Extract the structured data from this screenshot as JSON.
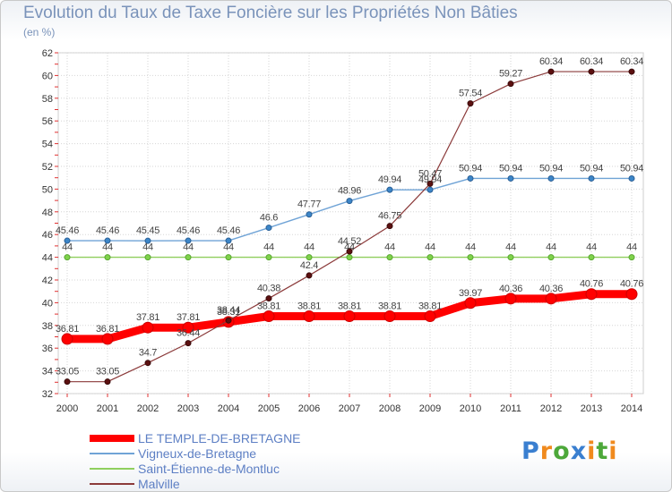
{
  "title": "Evolution du Taux de Taxe Foncière sur les Propriétés Non Bâties",
  "unit_label": "(en %)",
  "logo": {
    "text": "Proxiti",
    "letters": [
      "P",
      "r",
      "o",
      "x",
      "i",
      "t",
      "i"
    ],
    "colors": [
      "#3a7fd0",
      "#f08a1e",
      "#4da83a",
      "#3a7fd0",
      "#f08a1e",
      "#4da83a",
      "#f08a1e"
    ]
  },
  "chart_data": {
    "type": "line",
    "x": [
      "2000",
      "2001",
      "2002",
      "2003",
      "2004",
      "2005",
      "2006",
      "2007",
      "2008",
      "2009",
      "2010",
      "2011",
      "2012",
      "2013",
      "2014"
    ],
    "ylim": [
      32,
      62
    ],
    "yticks": [
      32,
      34,
      36,
      38,
      40,
      42,
      44,
      46,
      48,
      50,
      52,
      54,
      56,
      58,
      60,
      62
    ],
    "grid": true,
    "legend_position": "bottom-left",
    "series": [
      {
        "name": "LE TEMPLE-DE-BRETAGNE",
        "color": "#ff0000",
        "values": [
          36.81,
          36.81,
          37.81,
          37.81,
          38.31,
          38.81,
          38.81,
          38.81,
          38.81,
          38.81,
          39.97,
          40.36,
          40.36,
          40.76,
          40.76
        ],
        "labels": [
          "36.81",
          "36.81",
          "37.81",
          "37.81",
          "38.31",
          "38.81",
          "38.81",
          "38.81",
          "38.81",
          "38.81",
          "39.97",
          "40.36",
          "40.36",
          "40.76",
          "40.76"
        ]
      },
      {
        "name": "Vigneux-de-Bretagne",
        "color": "#6fa3d6",
        "values": [
          45.46,
          45.46,
          45.45,
          45.46,
          45.46,
          46.6,
          47.77,
          48.96,
          49.94,
          49.94,
          50.94,
          50.94,
          50.94,
          50.94,
          50.94
        ],
        "labels": [
          "45.46",
          "45.46",
          "45.45",
          "45.46",
          "45.46",
          "46.6",
          "47.77",
          "48.96",
          "49.94",
          "49.94",
          "50.94",
          "50.94",
          "50.94",
          "50.94",
          "50.94"
        ]
      },
      {
        "name": "Saint-Étienne-de-Montluc",
        "color": "#8fcf5e",
        "values": [
          44,
          44,
          44,
          44,
          44,
          44,
          44,
          44,
          44,
          44,
          44,
          44,
          44,
          44,
          44
        ],
        "labels": [
          "44",
          "44",
          "44",
          "44",
          "44",
          "44",
          "44",
          "44",
          "44",
          "44",
          "44",
          "44",
          "44",
          "44",
          "44"
        ]
      },
      {
        "name": "Malville",
        "color": "#8b3a3a",
        "values": [
          33.05,
          33.05,
          34.7,
          36.44,
          38.44,
          40.38,
          42.4,
          44.52,
          46.75,
          50.47,
          57.54,
          59.27,
          60.34,
          60.34,
          60.34
        ],
        "labels": [
          "33.05",
          "33.05",
          "34.7",
          "36.44",
          "38.44",
          "40.38",
          "42.4",
          "44.52",
          "46.75",
          "50.47",
          "57.54",
          "59.27",
          "60.34",
          "60.34",
          "60.34"
        ]
      }
    ]
  }
}
